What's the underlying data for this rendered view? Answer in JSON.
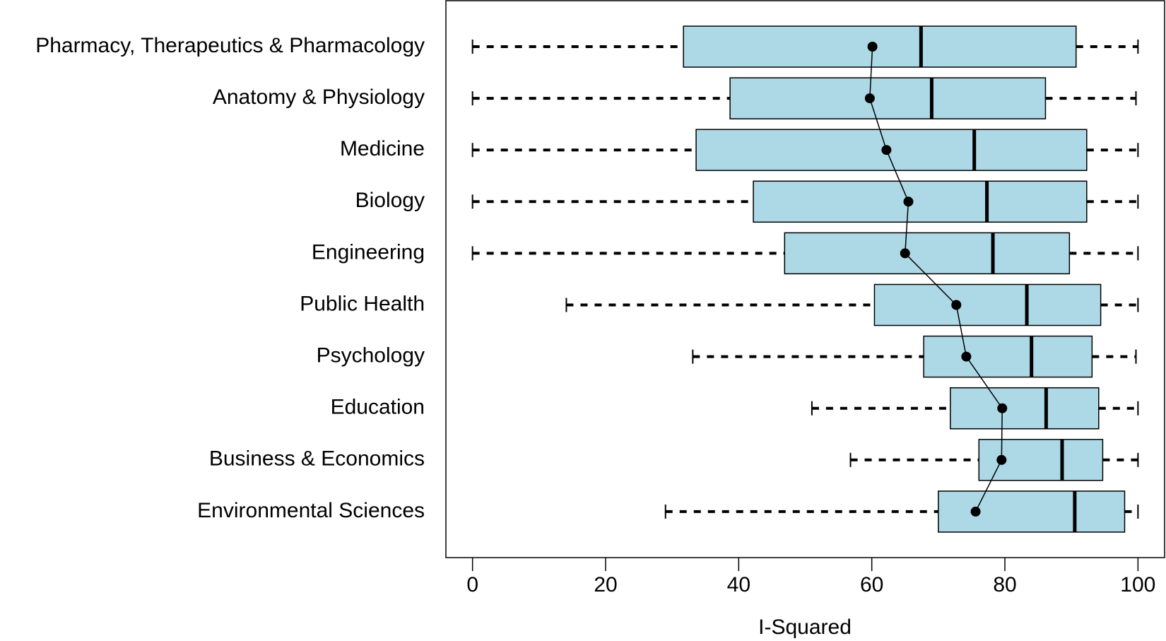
{
  "chart_data": {
    "type": "boxplot",
    "xlabel": "I-Squared",
    "categories": [
      "Pharmacy, Therapeutics & Pharmacology",
      "Anatomy & Physiology",
      "Medicine",
      "Biology",
      "Engineering",
      "Public Health",
      "Psychology",
      "Education",
      "Business & Economics",
      "Environmental Sciences"
    ],
    "min": [
      0,
      0,
      0,
      0,
      0,
      14.1,
      33.1,
      51.0,
      56.8,
      29.0
    ],
    "q1": [
      31.7,
      38.7,
      33.6,
      42.2,
      46.9,
      60.4,
      67.8,
      71.8,
      76.1,
      70.0
    ],
    "median": [
      67.4,
      69.0,
      75.4,
      77.3,
      78.2,
      83.3,
      84.0,
      86.2,
      88.6,
      90.5
    ],
    "q3": [
      90.7,
      86.1,
      92.3,
      92.3,
      89.7,
      94.4,
      93.1,
      94.1,
      94.7,
      98.0
    ],
    "max": [
      100,
      99.7,
      100,
      100,
      100,
      100,
      99.7,
      100,
      100,
      100
    ],
    "mean": [
      60.1,
      59.7,
      62.2,
      65.5,
      65.0,
      72.7,
      74.2,
      79.6,
      79.5,
      75.6
    ],
    "color": "#add8e6",
    "xlim": [
      -4,
      104
    ],
    "xticks": [
      0,
      20,
      40,
      60,
      80,
      100
    ]
  }
}
